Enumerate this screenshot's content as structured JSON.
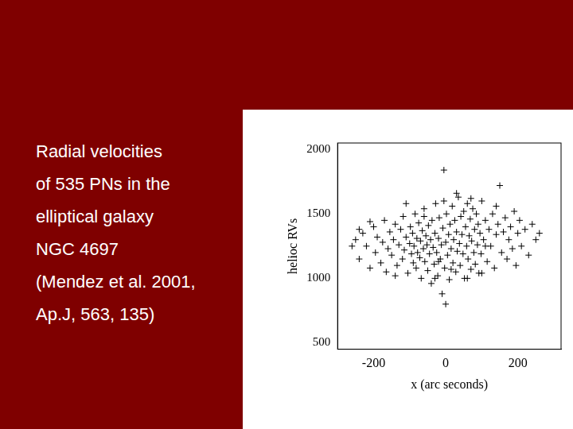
{
  "slide": {
    "text_lines": [
      "Radial velocities",
      "of 535 PNs in the",
      "elliptical galaxy",
      "NGC 4697",
      "(Mendez et al. 2001,",
      "Ap.J, 563, 135)"
    ]
  },
  "chart_data": {
    "type": "scatter",
    "x_label": "x (arc seconds)",
    "y_label": "helioc RVs",
    "color": "#000000",
    "marker": "cross",
    "grid": false,
    "xlim": [
      -300,
      320
    ],
    "xticks": [
      -200,
      0,
      200
    ],
    "ylim": [
      450,
      2050
    ],
    "yticks": [
      500,
      1000,
      1500,
      2000
    ],
    "x": [
      -250,
      -240,
      -230,
      -220,
      -210,
      -200,
      -195,
      -190,
      -180,
      -175,
      -170,
      -165,
      -160,
      -155,
      -150,
      -145,
      -140,
      -135,
      -130,
      -125,
      -120,
      -118,
      -115,
      -110,
      -105,
      -100,
      -98,
      -95,
      -92,
      -90,
      -88,
      -85,
      -82,
      -80,
      -78,
      -75,
      -72,
      -70,
      -68,
      -65,
      -62,
      -60,
      -58,
      -55,
      -52,
      -50,
      -48,
      -45,
      -42,
      -40,
      -38,
      -35,
      -32,
      -30,
      -28,
      -25,
      -22,
      -20,
      -18,
      -15,
      -12,
      -10,
      -8,
      -5,
      -3,
      0,
      2,
      5,
      8,
      10,
      12,
      15,
      18,
      20,
      22,
      25,
      28,
      30,
      32,
      35,
      38,
      40,
      42,
      45,
      48,
      50,
      52,
      55,
      58,
      60,
      62,
      65,
      68,
      70,
      72,
      75,
      78,
      80,
      82,
      85,
      88,
      90,
      92,
      95,
      98,
      100,
      105,
      110,
      115,
      120,
      125,
      130,
      135,
      140,
      145,
      150,
      155,
      160,
      165,
      170,
      175,
      180,
      185,
      190,
      195,
      200,
      205,
      210,
      220,
      230,
      240,
      250,
      -5,
      0,
      -260,
      -30,
      60,
      100,
      -140,
      30,
      -210,
      -110,
      140,
      260,
      -240,
      15,
      -60,
      110,
      -20,
      70
    ],
    "values": [
      1300,
      1150,
      1350,
      1250,
      1080,
      1400,
      1200,
      1320,
      1120,
      1280,
      1450,
      1050,
      1230,
      1360,
      1180,
      1300,
      1420,
      1100,
      1260,
      1380,
      1150,
      1480,
      1220,
      1320,
      1040,
      1270,
      1400,
      1190,
      1350,
      1120,
      1250,
      1500,
      1080,
      1310,
      1200,
      1430,
      1160,
      1290,
      1000,
      1370,
      1230,
      1540,
      1130,
      1330,
      1260,
      1060,
      1410,
      1190,
      1300,
      960,
      1450,
      1240,
      1110,
      1350,
      1580,
      1200,
      1020,
      1310,
      1470,
      1150,
      1260,
      880,
      1390,
      1600,
      1080,
      1280,
      1500,
      1180,
      1340,
      990,
      1420,
      1230,
      1560,
      1120,
      1300,
      1450,
      1050,
      1360,
      1210,
      1630,
      1270,
      1100,
      1480,
      1340,
      1190,
      1520,
      1000,
      1400,
      1250,
      1580,
      1150,
      1330,
      1460,
      1070,
      1290,
      1540,
      1200,
      1380,
      1110,
      1500,
      1260,
      1420,
      1040,
      1350,
      1190,
      1600,
      1300,
      1450,
      1130,
      1380,
      1250,
      1500,
      1080,
      1340,
      1420,
      1720,
      1200,
      1360,
      1470,
      1150,
      1300,
      1400,
      1230,
      1520,
      1100,
      1350,
      1450,
      1250,
      1380,
      1180,
      1420,
      1300,
      1840,
      800,
      1250,
      1000,
      1000,
      1040,
      1020,
      1660,
      1440,
      1580,
      1560,
      1350,
      1380,
      1070,
      1480,
      1250,
      1130,
      1620
    ]
  }
}
